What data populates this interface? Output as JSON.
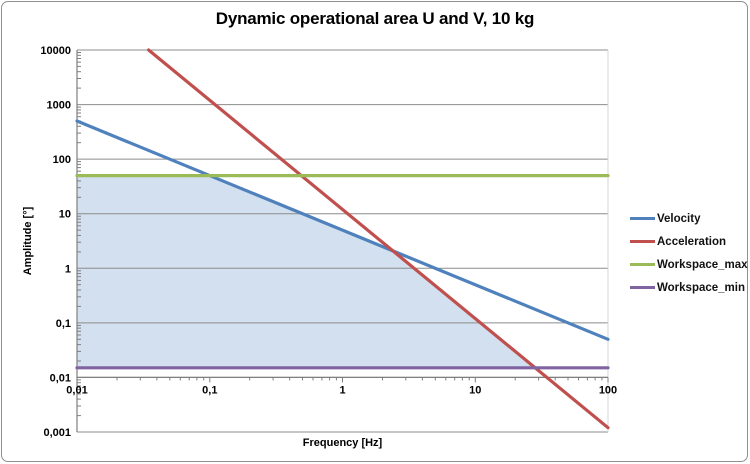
{
  "chart_data": {
    "type": "line",
    "title": "Dynamic operational area U and V, 10 kg",
    "xlabel": "Frequency [Hz]",
    "ylabel": "Amplitude [°]",
    "x_scale": "log",
    "y_scale": "log",
    "xlim": [
      0.01,
      100
    ],
    "ylim": [
      0.001,
      10000
    ],
    "grid": "horizontal-major-only",
    "legend_position": "right",
    "x_axis_crosses_at_y": 0.01,
    "x_ticks": [
      {
        "value": 0.01,
        "label": "0,01"
      },
      {
        "value": 0.1,
        "label": "0,1"
      },
      {
        "value": 1,
        "label": "1"
      },
      {
        "value": 10,
        "label": "10"
      },
      {
        "value": 100,
        "label": "100"
      }
    ],
    "y_ticks": [
      {
        "value": 10000,
        "label": "10000"
      },
      {
        "value": 1000,
        "label": "1000"
      },
      {
        "value": 100,
        "label": "100"
      },
      {
        "value": 10,
        "label": "10"
      },
      {
        "value": 1,
        "label": "1"
      },
      {
        "value": 0.1,
        "label": "0,1"
      },
      {
        "value": 0.01,
        "label": "0,01"
      },
      {
        "value": 0.001,
        "label": "0,001"
      }
    ],
    "series": [
      {
        "name": "Velocity",
        "color": "#4F81BD",
        "width": 3.2,
        "points": [
          [
            0.01,
            500
          ],
          [
            100,
            0.05
          ]
        ]
      },
      {
        "name": "Acceleration",
        "color": "#C0504D",
        "width": 3.2,
        "points": [
          [
            0.0346,
            10000
          ],
          [
            100,
            0.0012
          ]
        ]
      },
      {
        "name": "Workspace_max",
        "color": "#9BBB59",
        "width": 3.2,
        "points": [
          [
            0.01,
            50
          ],
          [
            100,
            50
          ]
        ]
      },
      {
        "name": "Workspace_min",
        "color": "#8064A2",
        "width": 3.2,
        "points": [
          [
            0.01,
            0.015
          ],
          [
            100,
            0.015
          ]
        ]
      }
    ],
    "shaded_region": {
      "name": "dynamic-operational-area",
      "fill": "#D3E0EF",
      "points": [
        [
          0.01,
          50
        ],
        [
          0.1,
          50
        ],
        [
          2.4,
          2.083
        ],
        [
          28.28,
          0.015
        ],
        [
          0.01,
          0.015
        ]
      ]
    }
  },
  "colors": {
    "gridline": "#8C8C8C",
    "axis_line": "#7F7F7F",
    "plot_right_border": "#D6D6D6",
    "tick": "#7F7F7F",
    "text": "#000000"
  }
}
